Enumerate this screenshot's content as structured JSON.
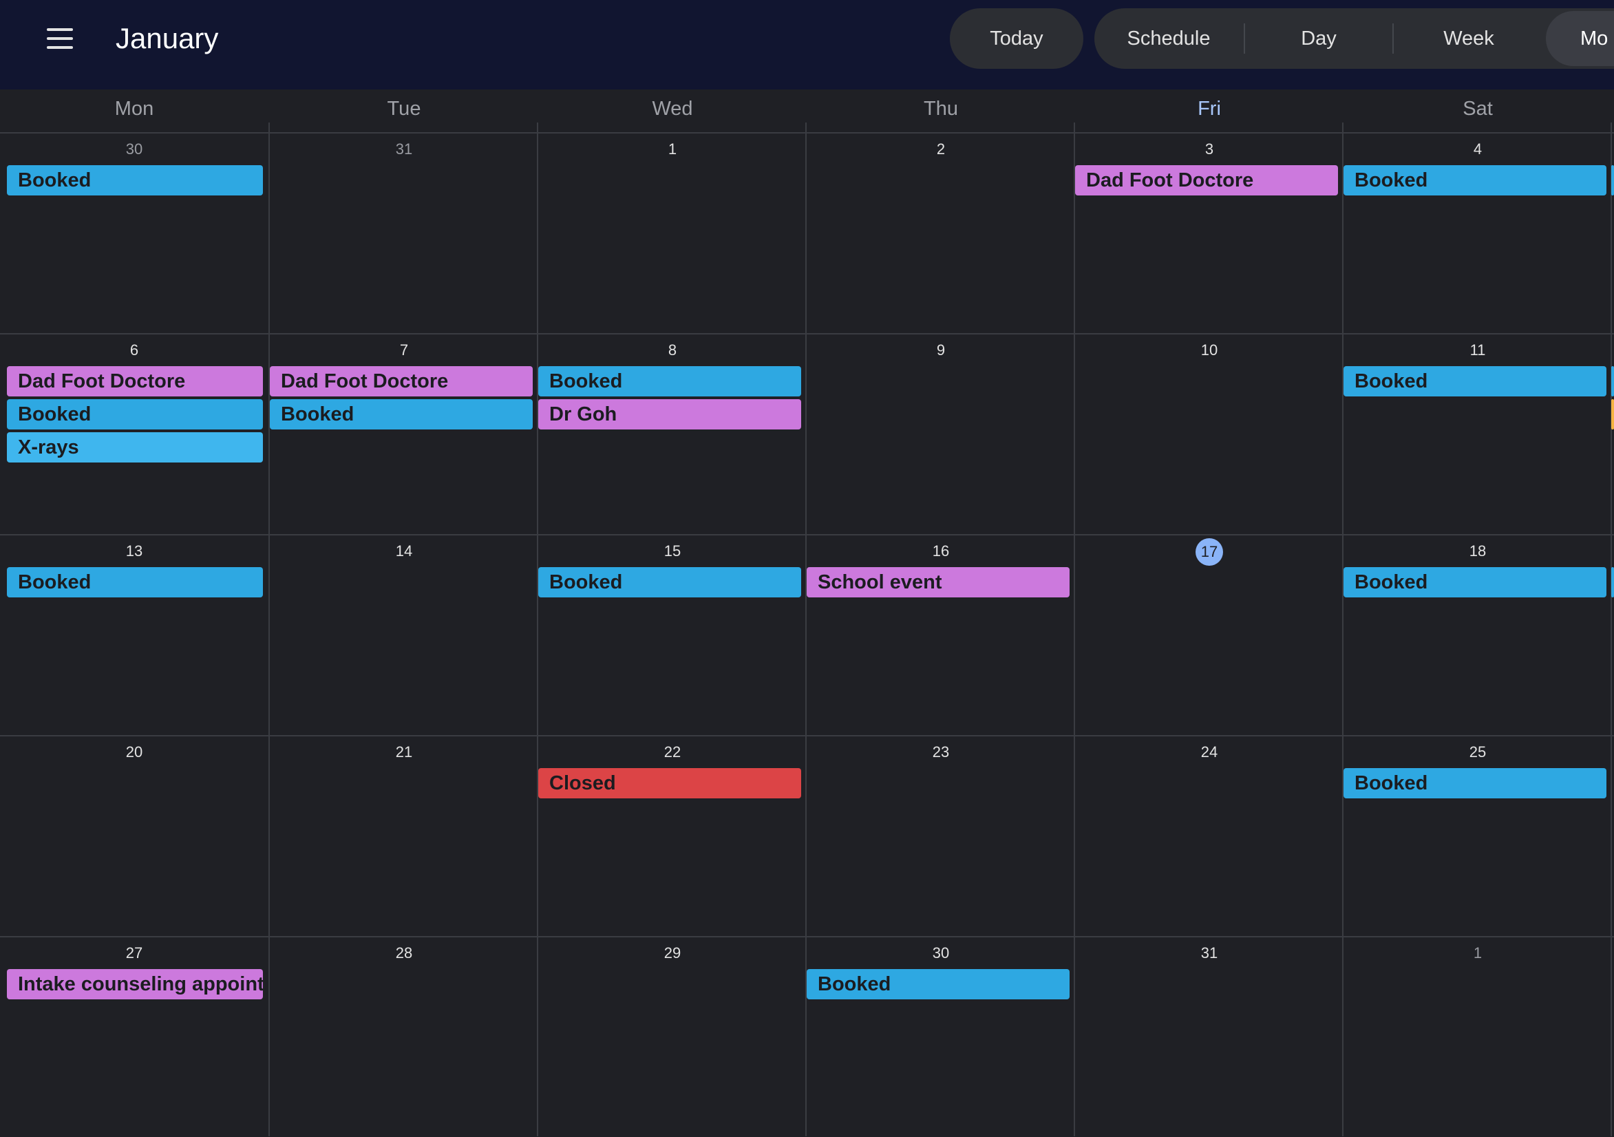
{
  "header": {
    "month_title": "January",
    "today_label": "Today",
    "views": [
      "Schedule",
      "Day",
      "Week",
      "Mo"
    ]
  },
  "colors": {
    "blue": "#2ea8e2",
    "light_blue": "#3fb6ee",
    "purple": "#cc79dd",
    "red": "#dc4446",
    "orange": "#f5b342"
  },
  "calendar": {
    "weekdays": [
      "Mon",
      "Tue",
      "Wed",
      "Thu",
      "Fri",
      "Sat"
    ],
    "today_weekday": "Fri",
    "today_date": "17",
    "weeks": [
      {
        "days": [
          {
            "num": "30",
            "muted": true,
            "events": [
              {
                "title": "Booked",
                "color": "blue"
              }
            ]
          },
          {
            "num": "31",
            "muted": true,
            "events": []
          },
          {
            "num": "1",
            "events": []
          },
          {
            "num": "2",
            "events": []
          },
          {
            "num": "3",
            "events": [
              {
                "title": "Dad Foot Doctore",
                "color": "purple"
              }
            ]
          },
          {
            "num": "4",
            "events": [
              {
                "title": "Booked",
                "color": "blue"
              }
            ]
          }
        ]
      },
      {
        "days": [
          {
            "num": "6",
            "events": [
              {
                "title": "Dad Foot Doctore",
                "color": "purple"
              },
              {
                "title": "Booked",
                "color": "blue"
              },
              {
                "title": "X-rays",
                "color": "light_blue"
              }
            ]
          },
          {
            "num": "7",
            "events": [
              {
                "title": "Dad Foot Doctore",
                "color": "purple"
              },
              {
                "title": "Booked",
                "color": "blue"
              }
            ]
          },
          {
            "num": "8",
            "events": [
              {
                "title": "Booked",
                "color": "blue"
              },
              {
                "title": "Dr Goh",
                "color": "purple"
              }
            ]
          },
          {
            "num": "9",
            "events": []
          },
          {
            "num": "10",
            "events": []
          },
          {
            "num": "11",
            "events": [
              {
                "title": "Booked",
                "color": "blue"
              }
            ]
          }
        ]
      },
      {
        "days": [
          {
            "num": "13",
            "events": [
              {
                "title": "Booked",
                "color": "blue"
              }
            ]
          },
          {
            "num": "14",
            "events": []
          },
          {
            "num": "15",
            "events": [
              {
                "title": "Booked",
                "color": "blue"
              }
            ]
          },
          {
            "num": "16",
            "events": [
              {
                "title": "School event",
                "color": "purple"
              }
            ]
          },
          {
            "num": "17",
            "today": true,
            "events": []
          },
          {
            "num": "18",
            "events": [
              {
                "title": "Booked",
                "color": "blue"
              }
            ]
          }
        ]
      },
      {
        "days": [
          {
            "num": "20",
            "events": []
          },
          {
            "num": "21",
            "events": []
          },
          {
            "num": "22",
            "events": [
              {
                "title": "Closed",
                "color": "red"
              }
            ]
          },
          {
            "num": "23",
            "events": []
          },
          {
            "num": "24",
            "events": []
          },
          {
            "num": "25",
            "events": [
              {
                "title": "Booked",
                "color": "blue"
              }
            ]
          }
        ]
      },
      {
        "days": [
          {
            "num": "27",
            "events": [
              {
                "title": "Intake counseling appointm",
                "color": "purple"
              }
            ]
          },
          {
            "num": "28",
            "events": []
          },
          {
            "num": "29",
            "events": []
          },
          {
            "num": "30",
            "events": [
              {
                "title": "Booked",
                "color": "blue"
              }
            ]
          },
          {
            "num": "31",
            "events": []
          },
          {
            "num": "1",
            "muted": true,
            "events": []
          }
        ]
      }
    ],
    "edge_markers": [
      {
        "week": 0,
        "color": "blue"
      },
      {
        "week": 1,
        "color": "blue"
      },
      {
        "week": 1,
        "color": "orange"
      },
      {
        "week": 2,
        "color": "blue"
      }
    ]
  }
}
